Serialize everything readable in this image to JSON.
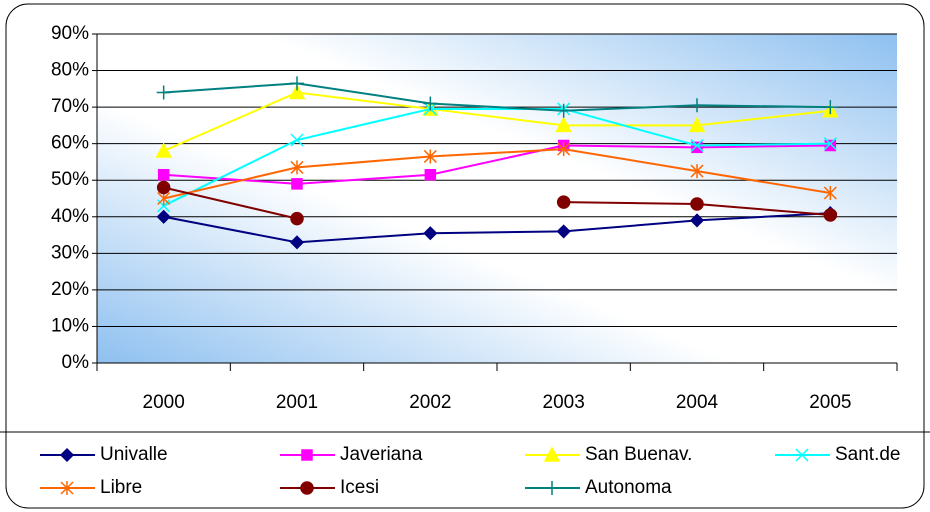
{
  "chart_data": {
    "type": "line",
    "categories": [
      "2000",
      "2001",
      "2002",
      "2003",
      "2004",
      "2005"
    ],
    "series": [
      {
        "name": "Univalle",
        "color": "#000080",
        "marker": "diamond",
        "values": [
          40,
          33,
          35.5,
          36,
          39,
          41
        ]
      },
      {
        "name": "Javeriana",
        "color": "#ff00ff",
        "marker": "square",
        "values": [
          51.5,
          49,
          51.5,
          59.5,
          59,
          59.5
        ]
      },
      {
        "name": "San Buenav.",
        "color": "#ffff00",
        "marker": "triangle",
        "values": [
          58,
          74,
          69.5,
          65,
          65,
          69
        ]
      },
      {
        "name": "Sant.de",
        "color": "#00ffff",
        "marker": "x",
        "values": [
          43,
          61,
          69.5,
          69.5,
          59.5,
          60
        ]
      },
      {
        "name": "Libre",
        "color": "#ff6600",
        "marker": "asterisk",
        "values": [
          45,
          53.5,
          56.5,
          58.5,
          52.5,
          46.5
        ]
      },
      {
        "name": "Icesi",
        "color": "#800000",
        "marker": "circle",
        "values": [
          48,
          39.5,
          null,
          44,
          43.5,
          40.5
        ]
      },
      {
        "name": "Autonoma",
        "color": "#008080",
        "marker": "plus",
        "values": [
          74,
          76.5,
          71,
          69,
          70.5,
          70
        ]
      }
    ],
    "ylim": [
      0,
      90
    ],
    "yticks": [
      {
        "value": 0,
        "label": "0%"
      },
      {
        "value": 10,
        "label": "10%"
      },
      {
        "value": 20,
        "label": "20%"
      },
      {
        "value": 30,
        "label": "30%"
      },
      {
        "value": 40,
        "label": "40%"
      },
      {
        "value": 50,
        "label": "50%"
      },
      {
        "value": 60,
        "label": "60%"
      },
      {
        "value": 70,
        "label": "70%"
      },
      {
        "value": 80,
        "label": "80%"
      },
      {
        "value": 90,
        "label": "90%"
      }
    ],
    "grid": true,
    "legend": "bottom"
  }
}
